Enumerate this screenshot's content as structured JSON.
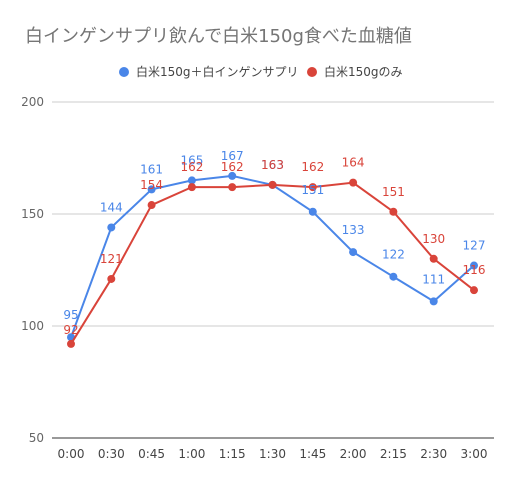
{
  "chart_data": {
    "type": "line",
    "title": "白インゲンサプリ飲んで白米150g食べた血糖値",
    "xlabel": "",
    "ylabel": "",
    "categories": [
      "0:00",
      "0:30",
      "0:45",
      "1:00",
      "1:15",
      "1:30",
      "1:45",
      "2:00",
      "2:15",
      "2:30",
      "3:00"
    ],
    "yticks": [
      50,
      100,
      150,
      200
    ],
    "ylim": [
      50,
      200
    ],
    "grid": true,
    "legend_position": "top",
    "series": [
      {
        "name": "白米150g＋白インゲンサプリ",
        "color": "#4a86e8",
        "values": [
          95,
          144,
          161,
          165,
          167,
          163,
          151,
          133,
          122,
          111,
          127
        ]
      },
      {
        "name": "白米150gのみ",
        "color": "#d9443a",
        "values": [
          92,
          121,
          154,
          162,
          162,
          163,
          162,
          164,
          151,
          130,
          116
        ]
      }
    ]
  }
}
